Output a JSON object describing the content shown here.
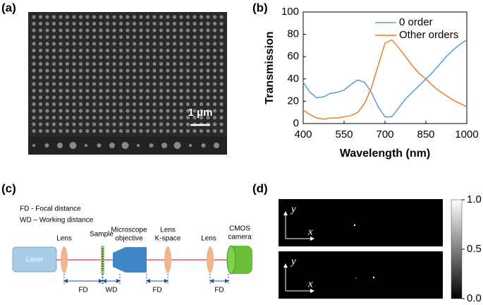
{
  "panels": {
    "a": "(a)",
    "b": "(b)",
    "c": "(c)",
    "d": "(d)"
  },
  "sem": {
    "scale_bar": "1 μm"
  },
  "chart_data": {
    "type": "line",
    "xlabel": "Wavelength (nm)",
    "ylabel": "Transmission",
    "x": [
      400,
      425,
      450,
      475,
      500,
      525,
      550,
      575,
      600,
      625,
      650,
      675,
      700,
      725,
      750,
      775,
      800,
      825,
      850,
      875,
      900,
      925,
      950,
      975,
      1000
    ],
    "series": [
      {
        "name": "0 order",
        "color": "#5b9bd5",
        "values": [
          37,
          28,
          23,
          24,
          27,
          28,
          30,
          35,
          39,
          37,
          28,
          15,
          6,
          6,
          14,
          22,
          28,
          34,
          40,
          46,
          53,
          60,
          66,
          71,
          75
        ]
      },
      {
        "name": "Other orders",
        "color": "#ed7d31",
        "values": [
          12,
          8,
          5,
          4,
          5,
          5,
          6,
          7,
          10,
          18,
          32,
          52,
          72,
          75,
          68,
          60,
          52,
          45,
          40,
          34,
          29,
          25,
          21,
          18,
          15
        ]
      }
    ],
    "xlim": [
      400,
      1000
    ],
    "ylim": [
      0,
      100
    ],
    "xticks": [
      400,
      550,
      700,
      850,
      1000
    ],
    "yticks": [
      0,
      20,
      40,
      60,
      80,
      100
    ],
    "legend": "upper right"
  },
  "setup": {
    "legend": [
      "FD - Focal distance",
      "WD – Working distance"
    ],
    "laser": "Laser",
    "components": [
      [
        "Lens"
      ],
      [
        "Sample"
      ],
      [
        "Microscope",
        "objective"
      ],
      [
        "Lens",
        "K-space"
      ],
      [
        "Lens"
      ],
      [
        "CMOS",
        "camera"
      ]
    ],
    "distances": [
      "FD",
      "WD",
      "FD",
      "FD"
    ]
  },
  "images": {
    "axis_y": "y",
    "axis_x": "x"
  },
  "colorbar": {
    "lim": [
      0,
      1
    ],
    "ticks": [
      {
        "value": 0,
        "label": "0.0"
      },
      {
        "value": 0.5,
        "label": "0.5"
      },
      {
        "value": 1,
        "label": "1.0"
      }
    ]
  }
}
